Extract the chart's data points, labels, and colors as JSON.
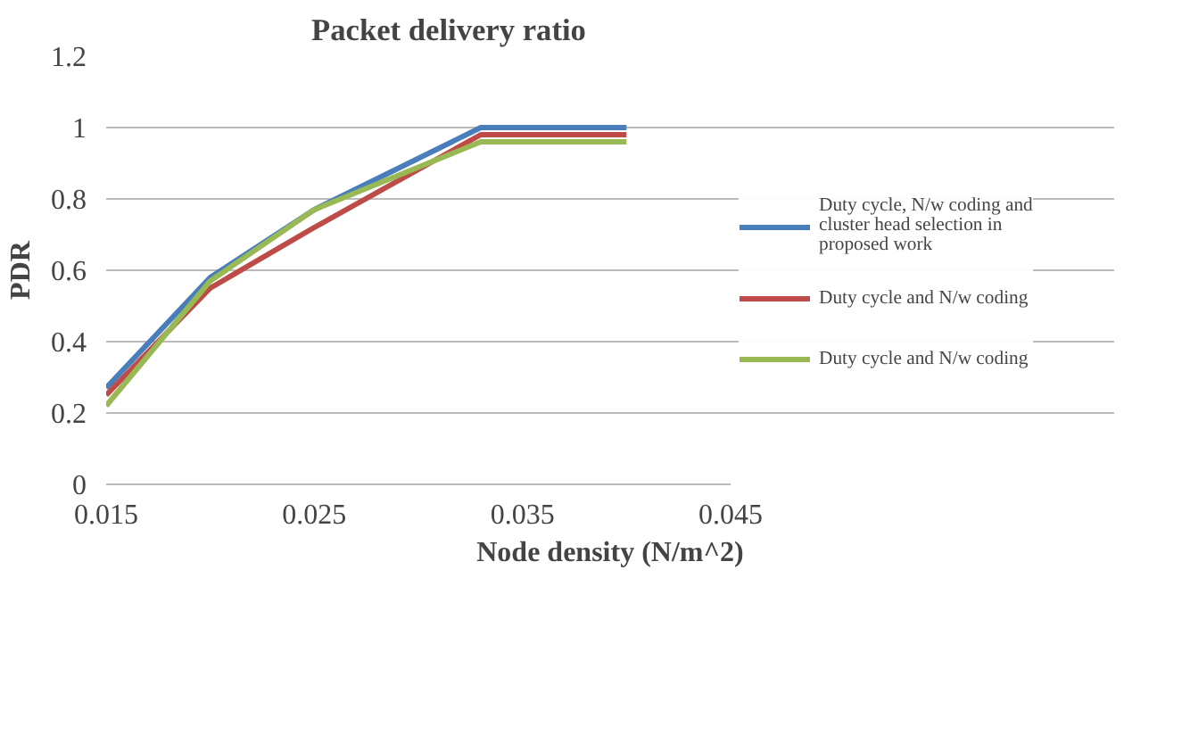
{
  "chart_data": {
    "type": "line",
    "title": "Packet delivery ratio",
    "xlabel": "Node density (N/m^2)",
    "ylabel": "PDR",
    "x": [
      0.015,
      0.02,
      0.025,
      0.033,
      0.04
    ],
    "series": [
      {
        "name": "Duty cycle, N/w coding and cluster head selection in proposed work",
        "color": "#4a7ebb",
        "values": [
          0.27,
          0.58,
          0.77,
          1.0,
          1.0
        ]
      },
      {
        "name": "Duty cycle and N/w coding",
        "color": "#be4b48",
        "values": [
          0.25,
          0.55,
          0.72,
          0.98,
          0.98
        ]
      },
      {
        "name": "Duty cycle and N/w coding",
        "color": "#98b954",
        "values": [
          0.22,
          0.57,
          0.77,
          0.96,
          0.96
        ]
      }
    ],
    "xlim": [
      0.015,
      0.045
    ],
    "xticks": [
      0.015,
      0.025,
      0.035,
      0.045
    ],
    "ylim": [
      0,
      1.2
    ],
    "yticks": [
      {
        "value": 0,
        "label": "0"
      },
      0.2,
      0.4,
      0.6,
      0.8,
      {
        "value": 1,
        "label": "1"
      },
      1.2
    ],
    "grid": "y",
    "legend": "right",
    "line_style": "solid",
    "marker": "none"
  }
}
